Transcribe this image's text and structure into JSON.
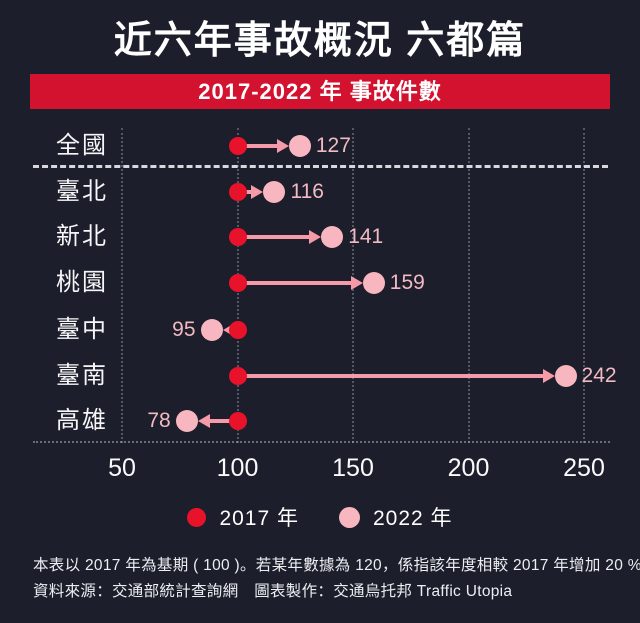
{
  "title": "近六年事故概況 六都篇",
  "banner": {
    "label": "2017-2022 年 事故件數"
  },
  "chart_data": {
    "type": "dumbbell",
    "title": "2017-2022 年 事故件數",
    "baseline": 100,
    "categories": [
      "全國",
      "臺北",
      "新北",
      "桃園",
      "臺中",
      "臺南",
      "高雄"
    ],
    "series": [
      {
        "name": "2017 年",
        "values": [
          100,
          100,
          100,
          100,
          100,
          100,
          100
        ]
      },
      {
        "name": "2022 年",
        "values": [
          127,
          116,
          141,
          159,
          95,
          242,
          78
        ]
      }
    ],
    "xticks": [
      "50",
      "100",
      "150",
      "200",
      "250"
    ],
    "xlim": [
      50,
      250
    ],
    "grid": "dotted-vertical-gridlines",
    "separator_after": "全國",
    "legend_position": "bottom"
  },
  "legend": {
    "items": [
      {
        "label": "2017 年",
        "color": "#e8122a"
      },
      {
        "label": "2022 年",
        "color": "#f8b6c0"
      }
    ]
  },
  "footnotes": {
    "line1": "本表以 2017 年為基期 ( 100 )。若某年數據為 120，係指該年度相較 2017 年增加 20 %",
    "line2": "資料來源：交通部統計查詢網　圖表製作：交通烏托邦 Traffic Utopia"
  },
  "colors": {
    "background": "#1c1e2b",
    "banner": "#d2122f",
    "dot_2017": "#e8122a",
    "dot_2022": "#f8b6c0",
    "arrow": "#f59aa8",
    "value_label": "#f2bac2",
    "grid": "#9aa0b2",
    "separator": "#d6d8de",
    "text": "#ffffff"
  }
}
